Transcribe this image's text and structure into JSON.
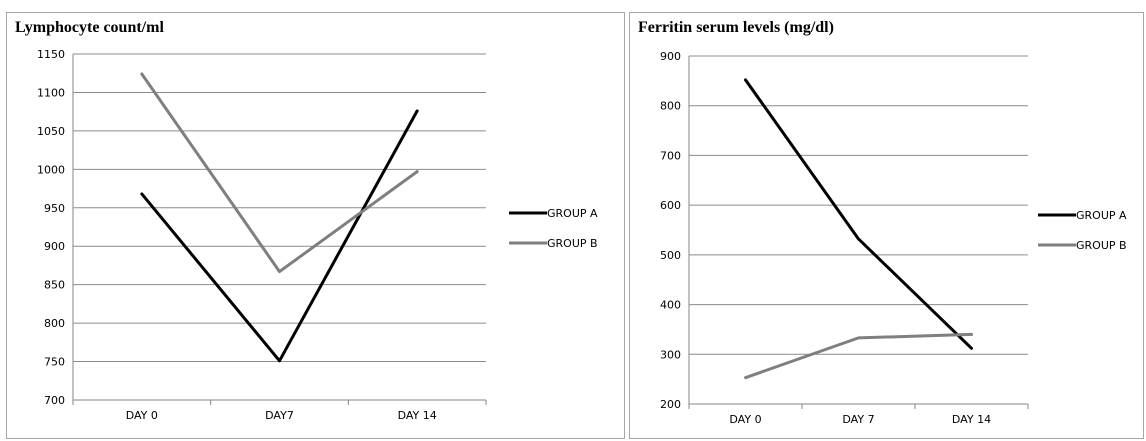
{
  "chart_data": [
    {
      "type": "line",
      "title": "Lymphocyte count/ml",
      "categories": [
        "DAY 0",
        "DAY7",
        "DAY 14"
      ],
      "ylim": [
        700,
        1150
      ],
      "yticks": [
        700,
        750,
        800,
        850,
        900,
        950,
        1000,
        1050,
        1100,
        1150
      ],
      "grid": true,
      "legend_position": "right",
      "series": [
        {
          "name": "GROUP A",
          "color": "#000000",
          "values": [
            968,
            751,
            1076
          ]
        },
        {
          "name": "GROUP B",
          "color": "#7f7f7f",
          "values": [
            1124,
            867,
            997
          ]
        }
      ]
    },
    {
      "type": "line",
      "title": "Ferritin serum levels (mg/dl)",
      "categories": [
        "DAY 0",
        "DAY 7",
        "DAY 14"
      ],
      "ylim": [
        200,
        900
      ],
      "yticks": [
        200,
        300,
        400,
        500,
        600,
        700,
        800,
        900
      ],
      "grid": true,
      "legend_position": "right",
      "series": [
        {
          "name": "GROUP A",
          "color": "#000000",
          "values": [
            852,
            532,
            312
          ]
        },
        {
          "name": "GROUP B",
          "color": "#7f7f7f",
          "values": [
            253,
            333,
            340
          ]
        }
      ]
    }
  ]
}
